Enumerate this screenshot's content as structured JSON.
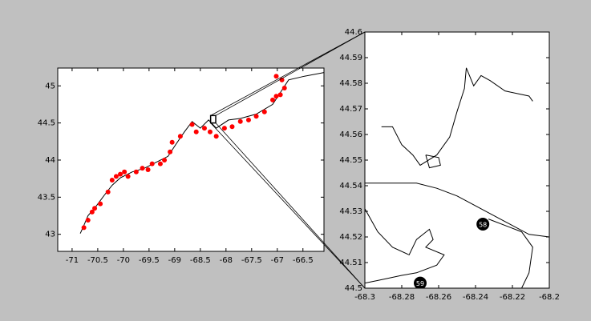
{
  "chart_data": [
    {
      "type": "line",
      "xlim": [
        -71.28,
        -66.09
      ],
      "ylim": [
        42.77,
        45.24
      ],
      "xticks": [
        -71,
        -70.5,
        -70,
        -69.5,
        -69,
        -68.5,
        -68,
        -67.5,
        -67,
        -66.5
      ],
      "yticks": [
        43,
        43.5,
        44,
        44.5,
        45
      ],
      "line_color": "#000000",
      "lines": [
        {
          "x": [
            -70.84,
            -70.77,
            -70.69,
            -70.53,
            -70.38,
            -70.22,
            -70.06,
            -69.83,
            -69.59,
            -69.36,
            -69.13,
            -68.97,
            -68.81,
            -68.66,
            -68.5,
            -68.34,
            -68.19,
            -67.95,
            -67.72,
            -67.41,
            -67.09,
            -66.94,
            -66.78,
            -66.47,
            -66.09
          ],
          "y": [
            43.01,
            43.12,
            43.25,
            43.38,
            43.52,
            43.66,
            43.76,
            43.84,
            43.89,
            43.97,
            44.05,
            44.22,
            44.38,
            44.52,
            44.43,
            44.54,
            44.43,
            44.54,
            44.56,
            44.62,
            44.75,
            44.91,
            45.08,
            45.13,
            45.18
          ]
        }
      ],
      "points": {
        "color": "#ff0000",
        "x": [
          -70.77,
          -70.69,
          -70.61,
          -70.56,
          -70.45,
          -70.3,
          -70.22,
          -70.14,
          -70.06,
          -69.98,
          -69.91,
          -69.75,
          -69.63,
          -69.52,
          -69.44,
          -69.28,
          -69.2,
          -69.09,
          -69.05,
          -68.89,
          -68.66,
          -68.58,
          -68.42,
          -68.31,
          -68.19,
          -68.03,
          -67.88,
          -67.72,
          -67.56,
          -67.41,
          -67.25,
          -67.09,
          -67.02,
          -66.94,
          -66.86,
          -66.91,
          -67.02
        ],
        "y": [
          43.09,
          43.19,
          43.3,
          43.35,
          43.41,
          43.57,
          43.73,
          43.78,
          43.81,
          43.84,
          43.78,
          43.84,
          43.89,
          43.87,
          43.95,
          43.95,
          44.0,
          44.11,
          44.24,
          44.32,
          44.48,
          44.38,
          44.43,
          44.38,
          44.32,
          44.43,
          44.45,
          44.52,
          44.54,
          44.59,
          44.65,
          44.81,
          44.86,
          44.88,
          44.97,
          45.08,
          45.13
        ]
      }
    },
    {
      "type": "line",
      "xlim": [
        -68.3,
        -68.2
      ],
      "ylim": [
        44.5,
        44.6
      ],
      "xticks": [
        -68.3,
        -68.28,
        -68.26,
        -68.24,
        -68.22,
        -68.2
      ],
      "yticks": [
        44.5,
        44.51,
        44.52,
        44.53,
        44.54,
        44.55,
        44.56,
        44.57,
        44.58,
        44.59,
        44.6
      ],
      "line_color": "#000000",
      "lines": [
        {
          "x": [
            -68.291,
            -68.285,
            -68.28,
            -68.274,
            -68.27,
            -68.261,
            -68.254,
            -68.25,
            -68.246,
            -68.245,
            -68.241,
            -68.237,
            -68.232,
            -68.224,
            -68.211,
            -68.209
          ],
          "y": [
            44.563,
            44.563,
            44.556,
            44.552,
            44.548,
            44.552,
            44.559,
            44.569,
            44.578,
            44.586,
            44.579,
            44.583,
            44.581,
            44.577,
            44.575,
            44.573
          ]
        },
        {
          "x": [
            -68.3,
            -68.285,
            -68.272,
            -68.261,
            -68.25,
            -68.237,
            -68.224,
            -68.211,
            -68.2
          ],
          "y": [
            44.541,
            44.541,
            44.541,
            44.539,
            44.536,
            44.531,
            44.526,
            44.521,
            44.52
          ]
        },
        {
          "x": [
            -68.267,
            -68.26,
            -68.259,
            -68.265,
            -68.267
          ],
          "y": [
            44.552,
            44.551,
            44.548,
            44.547,
            44.552
          ]
        },
        {
          "x": [
            -68.3,
            -68.293,
            -68.285,
            -68.276,
            -68.272,
            -68.265,
            -68.263,
            -68.267,
            -68.257,
            -68.261,
            -68.272,
            -68.28,
            -68.293,
            -68.3
          ],
          "y": [
            44.531,
            44.522,
            44.516,
            44.513,
            44.519,
            44.523,
            44.519,
            44.516,
            44.513,
            44.509,
            44.506,
            44.505,
            44.503,
            44.502
          ]
        },
        {
          "x": [
            -68.233,
            -68.215,
            -68.209,
            -68.211,
            -68.215
          ],
          "y": [
            44.527,
            44.522,
            44.516,
            44.506,
            44.5
          ]
        }
      ],
      "markers": {
        "color": "#000000",
        "x": [
          -68.236,
          -68.27
        ],
        "y": [
          44.525,
          44.502
        ],
        "labels": [
          "58",
          "59"
        ]
      }
    }
  ]
}
